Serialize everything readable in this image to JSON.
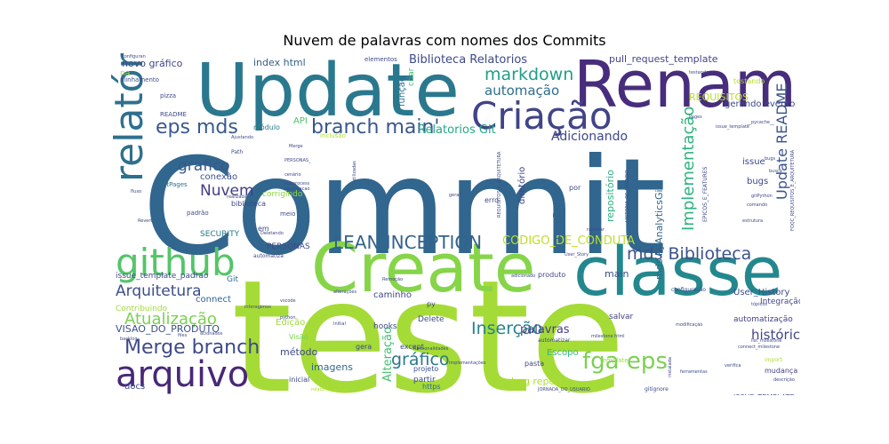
{
  "chart_data": {
    "type": "wordcloud",
    "title": "Nuvem de palavras com nomes dos Commits",
    "background": "#ffffff",
    "words": [
      {
        "text": "Commit",
        "color": "#31668e"
      },
      {
        "text": "teste",
        "color": "#a5db36"
      },
      {
        "text": "Update",
        "color": "#2a788e"
      },
      {
        "text": "Rename",
        "color": "#472d7b"
      },
      {
        "text": "Create",
        "color": "#86d549"
      },
      {
        "text": "classe",
        "color": "#23888e"
      },
      {
        "text": "github",
        "color": "#54c568"
      },
      {
        "text": "relatório",
        "color": "#2d708e"
      },
      {
        "text": "Criação",
        "color": "#414487"
      },
      {
        "text": "arquivo",
        "color": "#482878"
      },
      {
        "text": "mds Biblioteca",
        "color": "#3b528b"
      },
      {
        "text": "Merge branch",
        "color": "#3e4a89"
      },
      {
        "text": "eps mds",
        "color": "#38598c"
      },
      {
        "text": "branch main'",
        "color": "#39568c"
      },
      {
        "text": "LEAN INCEPTION",
        "color": "#33638d"
      },
      {
        "text": "Nuvem",
        "color": "#433e85"
      },
      {
        "text": "grafico",
        "color": "#38588c"
      },
      {
        "text": "Arquitetura",
        "color": "#3d4e8a"
      },
      {
        "text": "Atualização",
        "color": "#7ad151"
      },
      {
        "text": "fga eps",
        "color": "#7ad151"
      },
      {
        "text": "markdown",
        "color": "#1f9e89"
      },
      {
        "text": "Implementação",
        "color": "#2db27d"
      },
      {
        "text": "Update README",
        "color": "#3b528b"
      },
      {
        "text": "Inserção",
        "color": "#26828e"
      },
      {
        "text": "gráfico",
        "color": "#2a788e"
      },
      {
        "text": "Biblioteca Relatorios",
        "color": "#3e4a89"
      },
      {
        "text": "automação",
        "color": "#2e6e8e"
      },
      {
        "text": "Relatorios Git",
        "color": "#22a884"
      },
      {
        "text": "Adicionando",
        "color": "#3f4788"
      },
      {
        "text": "CODIGO_DE_CONDUTA",
        "color": "#bddf26"
      },
      {
        "text": "Alteração",
        "color": "#44bf70"
      },
      {
        "text": "histórico",
        "color": "#404688"
      },
      {
        "text": "palavras",
        "color": "#433e85"
      },
      {
        "text": "VISAO_DO_PRODUTO",
        "color": "#3b528b"
      },
      {
        "text": "issue_template_padrao",
        "color": "#3e4a89"
      },
      {
        "text": "pull_request_template",
        "color": "#404688"
      },
      {
        "text": "index html",
        "color": "#355f8d"
      },
      {
        "text": "novo gráfico",
        "color": "#3f4788"
      },
      {
        "text": "mds PyAnalyticsGit",
        "color": "#32658e"
      },
      {
        "text": "REQUISITOS",
        "color": "#b5de2b"
      },
      {
        "text": "gerando evento",
        "color": "#3e4989"
      },
      {
        "text": "repositório",
        "color": "#2ab07f"
      },
      {
        "text": "diretório",
        "color": "#3f4788"
      },
      {
        "text": "png Delete",
        "color": "#33638d"
      },
      {
        "text": "main",
        "color": "#3c4f8a"
      },
      {
        "text": "bug report",
        "color": "#addc30"
      },
      {
        "text": "imagens",
        "color": "#31678e"
      },
      {
        "text": "método",
        "color": "#3f4788"
      },
      {
        "text": "Edição",
        "color": "#9fda3a"
      },
      {
        "text": "caminho",
        "color": "#3e4a89"
      },
      {
        "text": "User_History",
        "color": "#3d4d8a"
      },
      {
        "text": "Integração",
        "color": "#414487"
      },
      {
        "text": "automatização",
        "color": "#424186"
      },
      {
        "text": "Escopo",
        "color": "#35b779"
      },
      {
        "text": "Correção",
        "color": "#addc30"
      },
      {
        "text": "partir",
        "color": "#3f4788"
      },
      {
        "text": "docs",
        "color": "#3f4788"
      },
      {
        "text": "conexão",
        "color": "#3b528b"
      },
      {
        "text": "bugs",
        "color": "#3f4788"
      },
      {
        "text": "issue",
        "color": "#3e4989"
      },
      {
        "text": "connect",
        "color": "#33638d"
      },
      {
        "text": "PERSONAS",
        "color": "#3e4989"
      },
      {
        "text": "Contribuindo",
        "color": "#9fda3a"
      },
      {
        "text": "SECURITY",
        "color": "#2a788e"
      },
      {
        "text": "função",
        "color": "#2e6f8e"
      },
      {
        "text": "criar",
        "color": "#42be71"
      },
      {
        "text": "hooks",
        "color": "#3e4a89"
      },
      {
        "text": "Delete",
        "color": "#3d4d8a"
      },
      {
        "text": "salvar",
        "color": "#433e85"
      },
      {
        "text": "Git",
        "color": "#2f6c8e"
      },
      {
        "text": "API",
        "color": "#4ac16d"
      },
      {
        "text": "módulo",
        "color": "#2a788e"
      },
      {
        "text": "corrigindo",
        "color": "#8fd744"
      },
      {
        "text": "biblioteca",
        "color": "#3f4788"
      },
      {
        "text": "ISSUE_TEMPLATE",
        "color": "#3e4989"
      },
      {
        "text": "mudança",
        "color": "#433e85"
      },
      {
        "text": "https",
        "color": "#2e6e8e"
      },
      {
        "text": "gera",
        "color": "#404688"
      },
      {
        "text": "except",
        "color": "#3e4a89"
      },
      {
        "text": "pasta",
        "color": "#3e4989"
      },
      {
        "text": "projeto",
        "color": "#3b528b"
      },
      {
        "text": "inicial",
        "color": "#3e4989"
      },
      {
        "text": "Visão",
        "color": "#7ad151"
      },
      {
        "text": "produto",
        "color": "#3e4989"
      },
      {
        "text": "testando",
        "color": "#b5de2b"
      },
      {
        "text": "elementos",
        "color": "#3e4a89"
      },
      {
        "text": "na",
        "color": "#9fda3a"
      },
      {
        "text": "alinhamento",
        "color": "#3d4d8a"
      },
      {
        "text": "README",
        "color": "#3e4a89"
      },
      {
        "text": "pizza",
        "color": "#3e4a89"
      },
      {
        "text": "GitPages",
        "color": "#2d708e"
      },
      {
        "text": "meio",
        "color": "#3d4d8a"
      },
      {
        "text": "em",
        "color": "#3e4a89"
      },
      {
        "text": "por",
        "color": "#3e4989"
      },
      {
        "text": "erro",
        "color": "#3e4989"
      },
      {
        "text": "py",
        "color": "#3d4d8a"
      },
      {
        "text": "template",
        "color": "#9fda3a"
      },
      {
        "text": "configuração",
        "color": "#3e4989"
      },
      {
        "text": "automatizar",
        "color": "#3e4989"
      },
      {
        "text": "funcionalidades",
        "color": "#3e4a89"
      },
      {
        "text": "implementações",
        "color": "#3e4a89"
      },
      {
        "text": "milestone html",
        "color": "#3e4a89"
      },
      {
        "text": "modificação",
        "color": "#3e4989"
      },
      {
        "text": "connect_milestone",
        "color": "#3e4989"
      },
      {
        "text": "list_milestone",
        "color": "#3e4989"
      },
      {
        "text": "descrição",
        "color": "#3e4989"
      },
      {
        "text": "padrão",
        "color": "#3e4989"
      },
      {
        "text": "Path",
        "color": "#3e4989"
      },
      {
        "text": "Merge",
        "color": "#3e4989"
      },
      {
        "text": "Ajustando",
        "color": "#3e4989"
      },
      {
        "text": "Inclusão",
        "color": "#addc30"
      },
      {
        "text": "automatiza",
        "color": "#3e4989"
      },
      {
        "text": "interagimos",
        "color": "#3e4989"
      },
      {
        "text": "acionados",
        "color": "#3e4989"
      },
      {
        "text": "backlog",
        "color": "#3e4989"
      },
      {
        "text": "utilizadas",
        "color": "#3e4989"
      },
      {
        "text": "python",
        "color": "#3e4989"
      },
      {
        "text": "vscode",
        "color": "#3e4989"
      },
      {
        "text": "realizada",
        "color": "#3e4989"
      },
      {
        "text": "verifica",
        "color": "#3e4989"
      },
      {
        "text": "import",
        "color": "#addc30"
      },
      {
        "text": "gitignore",
        "color": "#3e4989"
      },
      {
        "text": "instalada",
        "color": "#3e4989"
      },
      {
        "text": "ferramentas",
        "color": "#3e4989"
      },
      {
        "text": "EPICOS_E_FEATURES",
        "color": "#3e4989"
      },
      {
        "text": "HISTORIA_DE_USUARIO",
        "color": "#3e4989"
      },
      {
        "text": "FOQC_REQUISITOS_E_ARQUITETURA",
        "color": "#3e4989"
      },
      {
        "text": "REQUISITOS_E_ARQUITETURA",
        "color": "#3e4989"
      },
      {
        "text": "JORNADA_DO_USUARIO",
        "color": "#3e4989"
      },
      {
        "text": "relatorio_padrao",
        "color": "#addc30"
      },
      {
        "text": "issue_template",
        "color": "#3e4989"
      },
      {
        "text": "estrutura",
        "color": "#3e4989"
      },
      {
        "text": "comando",
        "color": "#3e4989"
      },
      {
        "text": "gitPython",
        "color": "#3e4989"
      },
      {
        "text": "busca",
        "color": "#3e4989"
      },
      {
        "text": "Remoção",
        "color": "#3e4989"
      },
      {
        "text": "adicionado",
        "color": "#3e4989"
      },
      {
        "text": "User_Story",
        "color": "#3e4989"
      },
      {
        "text": "alterações",
        "color": "#3e4989"
      },
      {
        "text": "gerar",
        "color": "#3e4989"
      },
      {
        "text": "rastrear",
        "color": "#3e4989"
      },
      {
        "text": "Revert",
        "color": "#3e4989"
      },
      {
        "text": "fluxo",
        "color": "#3e4989"
      },
      {
        "text": "tópicos",
        "color": "#3e4989"
      },
      {
        "text": "Pages",
        "color": "#3e4989"
      },
      {
        "text": "__pycache__",
        "color": "#3e4989"
      },
      {
        "text": "configuran",
        "color": "#3e4989"
      },
      {
        "text": "PERSONAS_",
        "color": "#3e4989"
      },
      {
        "text": "Deletando",
        "color": "#3e4989"
      },
      {
        "text": "testando",
        "color": "#3e4989"
      },
      {
        "text": "cenário",
        "color": "#3e4989"
      },
      {
        "text": "subprocess",
        "color": "#3e4989"
      },
      {
        "text": "atualizacao",
        "color": "#3e4989"
      },
      {
        "text": "Initial",
        "color": "#3e4989"
      },
      {
        "text": "files",
        "color": "#3e4989"
      },
      {
        "text": "bugs",
        "color": "#3e4989"
      }
    ]
  }
}
